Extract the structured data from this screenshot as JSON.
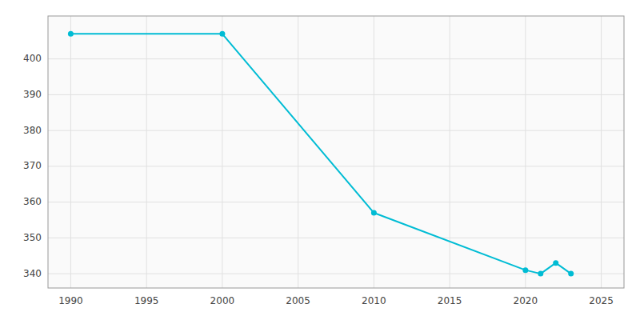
{
  "chart_data": {
    "type": "line",
    "x": [
      1990,
      2000,
      2010,
      2020,
      2021,
      2022,
      2023
    ],
    "values": [
      407,
      407,
      357,
      341,
      340,
      343,
      340
    ],
    "color": "#00bcd4",
    "marker": "circle",
    "xlim": [
      1988.5,
      2026.5
    ],
    "ylim": [
      336,
      412
    ],
    "xticks": [
      1990,
      1995,
      2000,
      2005,
      2010,
      2015,
      2020,
      2025
    ],
    "yticks": [
      340,
      350,
      360,
      370,
      380,
      390,
      400
    ],
    "grid": true
  }
}
